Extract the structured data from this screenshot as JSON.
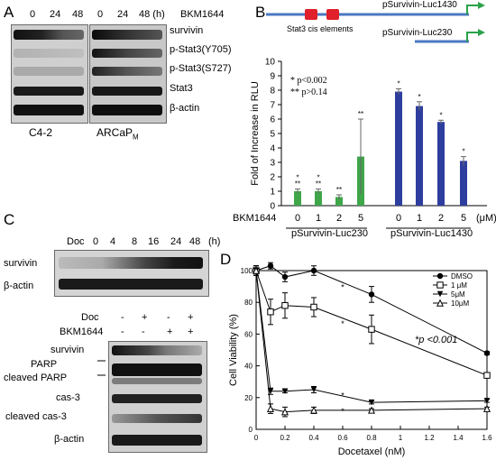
{
  "panelA": {
    "letter": "A",
    "lanes": [
      "0",
      "24",
      "48",
      "0",
      "24",
      "48 (h)"
    ],
    "treatment": "BKM1644",
    "rows": [
      "survivin",
      "p-Stat3(Y705)",
      "p-Stat3(S727)",
      "Stat3",
      "β-actin"
    ],
    "cell_line_1": "C4-2",
    "cell_line_2_main": "ARCaP",
    "cell_line_2_sub": "M"
  },
  "panelB": {
    "letter": "B",
    "construct_long": "pSurvivin-Luc1430",
    "construct_short": "pSurvivin-Luc230",
    "cis_label": "Stat3 cis elements",
    "legend_1": "* p<0.002",
    "legend_2": "** p>0.14",
    "row_label": "BKM1644",
    "unit": "(μM)",
    "group_1": "pSurvivin-Luc230",
    "group_2": "pSurvivin-Luc1430",
    "chart_data": {
      "type": "bar",
      "ylabel": "Fold of Increase in RLU",
      "ylim": [
        0,
        10
      ],
      "yticks": [
        "0",
        "1",
        "2",
        "3",
        "4",
        "5",
        "6",
        "7",
        "8",
        "9",
        "10"
      ],
      "categories": [
        "0",
        "1",
        "2",
        "5",
        "0",
        "1",
        "2",
        "5"
      ],
      "values": [
        1.0,
        1.0,
        0.6,
        3.4,
        7.9,
        6.9,
        5.8,
        3.1
      ],
      "errors": [
        0.15,
        0.15,
        0.15,
        2.6,
        0.2,
        0.3,
        0.12,
        0.3
      ],
      "groups": [
        "pSurvivin-Luc230",
        "pSurvivin-Luc230",
        "pSurvivin-Luc230",
        "pSurvivin-Luc230",
        "pSurvivin-Luc1430",
        "pSurvivin-Luc1430",
        "pSurvivin-Luc1430",
        "pSurvivin-Luc1430"
      ],
      "marks": [
        "*\n**",
        "*\n**",
        "**",
        "**",
        "*",
        "*",
        "*",
        "*"
      ],
      "colors": {
        "pSurvivin-Luc230": "#3fa64a",
        "pSurvivin-Luc1430": "#2e3e9e"
      }
    }
  },
  "panelC": {
    "letter": "C",
    "doc_label": "Doc",
    "time_lanes": [
      "0",
      "4",
      "8",
      "16",
      "24",
      "48"
    ],
    "time_unit": "(h)",
    "top_rows": [
      "survivin",
      "β-actin"
    ],
    "combo_doc": "Doc",
    "combo_bkm": "BKM1644",
    "doc_signs": [
      "-",
      "+",
      "-",
      "+"
    ],
    "bkm_signs": [
      "-",
      "-",
      "+",
      "+"
    ],
    "bottom_rows": [
      "survivin",
      "PARP",
      "cleaved PARP",
      "cas-3",
      "cleaved cas-3",
      "β-actin"
    ]
  },
  "panelD": {
    "letter": "D",
    "pvalue_label": "*p <0.001",
    "chart_data": {
      "type": "line",
      "xlabel": "Docetaxel (nM)",
      "ylabel": "Cell Viability (%)",
      "xlim": [
        0,
        1.6
      ],
      "ylim": [
        0,
        100
      ],
      "xticks": [
        "0",
        "0.2",
        "0.4",
        "0.6",
        "0.8",
        "1",
        "1.2",
        "1.4",
        "1.6"
      ],
      "yticks": [
        "0",
        "20",
        "40",
        "60",
        "80",
        "100"
      ],
      "x": [
        0,
        0.1,
        0.2,
        0.4,
        0.8,
        1.6
      ],
      "series": [
        {
          "name": "DMSO",
          "values": [
            100,
            103,
            96,
            100,
            85,
            48
          ],
          "errors": [
            3,
            2,
            3,
            3,
            5,
            1
          ],
          "marker": "filled-circle"
        },
        {
          "name": "1 μM",
          "values": [
            100,
            74,
            78,
            77,
            63,
            34
          ],
          "errors": [
            3,
            8,
            8,
            6,
            9,
            1
          ],
          "marker": "open-square"
        },
        {
          "name": "5μM",
          "values": [
            100,
            24,
            24,
            25,
            17,
            18
          ],
          "errors": [
            3,
            2,
            1,
            2,
            1,
            1
          ],
          "marker": "filled-triangle-down"
        },
        {
          "name": "10μM",
          "values": [
            100,
            13,
            11,
            12,
            12,
            13
          ],
          "errors": [
            3,
            3,
            3,
            2,
            1,
            1
          ],
          "marker": "open-triangle"
        }
      ],
      "star_positions": [
        0.6,
        0.6,
        0.6,
        0.6
      ],
      "star_values": [
        90,
        67,
        22,
        12
      ],
      "legend_position": "top-right"
    }
  }
}
